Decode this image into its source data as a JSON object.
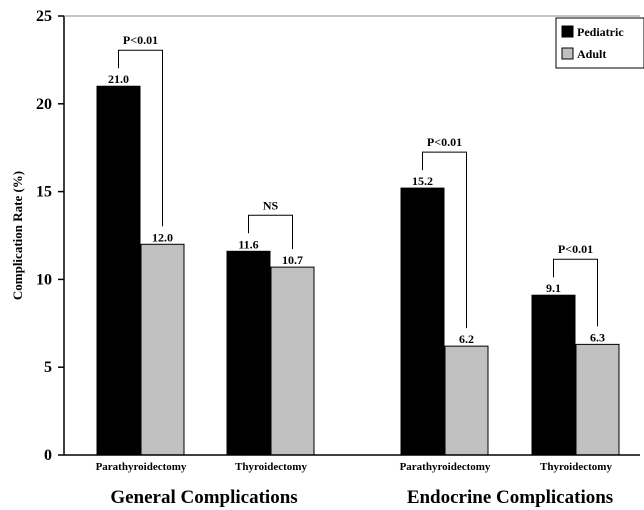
{
  "chart_data": {
    "type": "bar",
    "title": "",
    "ylabel": "Complication Rate (%)",
    "xlabel": "",
    "ylim": [
      0,
      25
    ],
    "yticks": [
      0,
      5,
      10,
      15,
      20,
      25
    ],
    "grid": false,
    "legend_position": "top-right",
    "series": [
      {
        "name": "Pediatric",
        "color": "#000000"
      },
      {
        "name": "Adult",
        "color": "#c0c0c0"
      }
    ],
    "groups": [
      {
        "label": "General Complications",
        "categories": [
          {
            "label": "Parathyroidectomy",
            "values": [
              21.0,
              12.0
            ],
            "value_labels": [
              "21.0",
              "12.0"
            ],
            "significance": "P<0.01"
          },
          {
            "label": "Thyroidectomy",
            "values": [
              11.6,
              10.7
            ],
            "value_labels": [
              "11.6",
              "10.7"
            ],
            "significance": "NS"
          }
        ]
      },
      {
        "label": "Endocrine Complications",
        "categories": [
          {
            "label": "Parathyroidectomy",
            "values": [
              15.2,
              6.2
            ],
            "value_labels": [
              "15.2",
              "6.2"
            ],
            "significance": "P<0.01"
          },
          {
            "label": "Thyroidectomy",
            "values": [
              9.1,
              6.3
            ],
            "value_labels": [
              "9.1",
              "6.3"
            ],
            "significance": "P<0.01"
          }
        ]
      }
    ]
  }
}
